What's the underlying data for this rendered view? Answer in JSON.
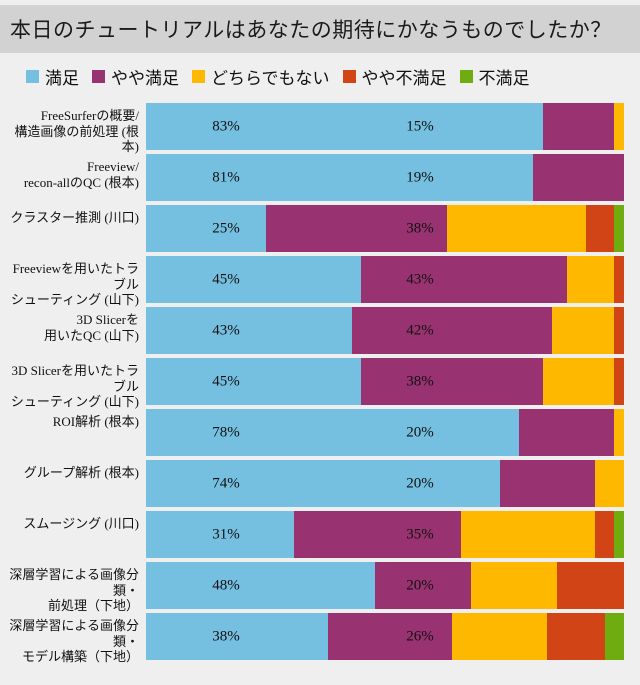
{
  "title": "本日のチュートリアルはあなたの期待にかなうものでしたか？",
  "colors": {
    "page_background": "#EFEFEF",
    "title_bar_background": "#D2D2D2",
    "text": "#111111"
  },
  "chart_data": {
    "type": "bar",
    "variant": "horizontal-stacked",
    "unit": "%",
    "xlim": [
      0,
      100
    ],
    "grid": false,
    "legend_position": "top",
    "title": "本日のチュートリアルはあなたの期待にかなうものでしたか？",
    "series_meta": [
      {
        "key": "satisfied",
        "name": "満足",
        "color": "#75BFE0"
      },
      {
        "key": "somewhat-satisfied",
        "name": "やや満足",
        "color": "#993271"
      },
      {
        "key": "neutral",
        "name": "どちらでもない",
        "color": "#FFB800"
      },
      {
        "key": "somewhat-dissatisfied",
        "name": "やや不満足",
        "color": "#D04416"
      },
      {
        "key": "dissatisfied",
        "name": "不満足",
        "color": "#6FAC10"
      }
    ],
    "categories": [
      "FreeSurferの概要/\n構造画像の前処理 (根本)",
      "Freeview/\nrecon-allのQC (根本)",
      "クラスター推測 (川口)",
      "Freeviewを用いたトラブル\nシューティング (山下)",
      "3D Slicerを\n用いたQC (山下)",
      "3D Slicerを用いたトラブル\nシューティング (山下)",
      "ROI解析 (根本)",
      "グループ解析 (根本)",
      "スムージング (川口)",
      "深層学習による画像分類・\n前処理（下地）",
      "深層学習による画像分類・\nモデル構築（下地）"
    ],
    "rows": [
      {
        "label": "FreeSurferの概要/\n構造画像の前処理 (根本)",
        "values": [
          83,
          15,
          2,
          0,
          0
        ],
        "value_labels": [
          "83%",
          "15%"
        ]
      },
      {
        "label": "Freeview/\nrecon-allのQC (根本)",
        "values": [
          81,
          19,
          0,
          0,
          0
        ],
        "value_labels": [
          "81%",
          "19%"
        ]
      },
      {
        "label": "クラスター推測 (川口)",
        "values": [
          25,
          38,
          29,
          6,
          2
        ],
        "value_labels": [
          "25%",
          "38%"
        ]
      },
      {
        "label": "Freeviewを用いたトラブル\nシューティング (山下)",
        "values": [
          45,
          43,
          10,
          2,
          0
        ],
        "value_labels": [
          "45%",
          "43%"
        ]
      },
      {
        "label": "3D Slicerを\n用いたQC (山下)",
        "values": [
          43,
          42,
          13,
          2,
          0
        ],
        "value_labels": [
          "43%",
          "42%"
        ]
      },
      {
        "label": "3D Slicerを用いたトラブル\nシューティング (山下)",
        "values": [
          45,
          38,
          15,
          2,
          0
        ],
        "value_labels": [
          "45%",
          "38%"
        ]
      },
      {
        "label": "ROI解析 (根本)",
        "values": [
          78,
          20,
          2,
          0,
          0
        ],
        "value_labels": [
          "78%",
          "20%"
        ]
      },
      {
        "label": "グループ解析 (根本)",
        "values": [
          74,
          20,
          6,
          0,
          0
        ],
        "value_labels": [
          "74%",
          "20%"
        ]
      },
      {
        "label": "スムージング (川口)",
        "values": [
          31,
          35,
          28,
          4,
          2
        ],
        "value_labels": [
          "31%",
          "35%"
        ]
      },
      {
        "label": "深層学習による画像分類・\n前処理（下地）",
        "values": [
          48,
          20,
          18,
          14,
          0
        ],
        "value_labels": [
          "48%",
          "20%"
        ]
      },
      {
        "label": "深層学習による画像分類・\nモデル構築（下地）",
        "values": [
          38,
          26,
          20,
          12,
          4
        ],
        "value_labels": [
          "38%",
          "26%"
        ]
      }
    ]
  }
}
